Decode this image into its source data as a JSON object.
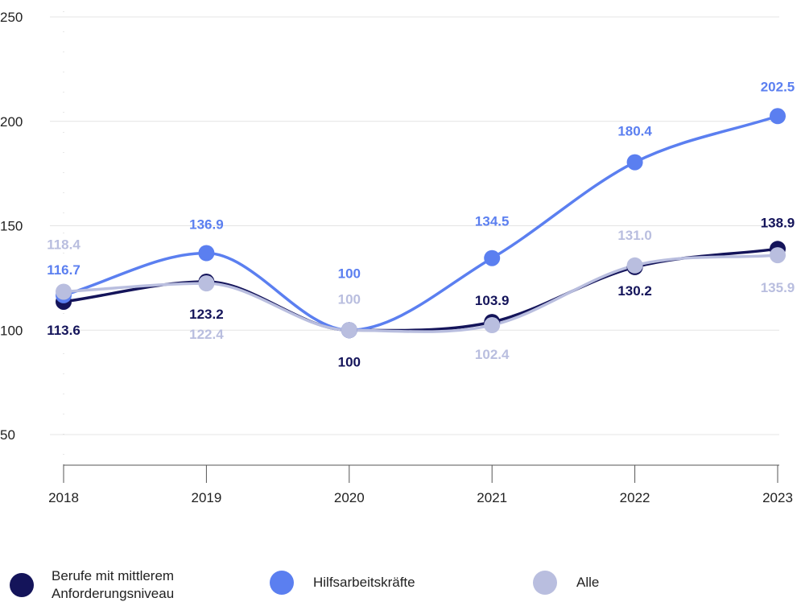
{
  "chart_data": {
    "type": "line",
    "title": "",
    "xlabel": "",
    "ylabel": "",
    "x": [
      "2018",
      "2019",
      "2020",
      "2021",
      "2022",
      "2023"
    ],
    "ylim": [
      30,
      250
    ],
    "yticks": [
      50,
      100,
      150,
      200,
      250
    ],
    "grid": "horizontal",
    "legend_position": "bottom",
    "series": [
      {
        "name": "Berufe mit mittlerem Anforderungsniveau",
        "color": "#14145a",
        "values": [
          113.6,
          123.2,
          100,
          103.9,
          130.2,
          138.9
        ],
        "labels": [
          "113.6",
          "123.2",
          "100",
          "103.9",
          "130.2",
          "138.9"
        ]
      },
      {
        "name": "Hilfsarbeitskräfte",
        "color": "#5b7ff0",
        "values": [
          116.7,
          136.9,
          100,
          134.5,
          180.4,
          202.5
        ],
        "labels": [
          "116.7",
          "136.9",
          "100",
          "134.5",
          "180.4",
          "202.5"
        ]
      },
      {
        "name": "Alle",
        "color": "#b9bedf",
        "values": [
          118.4,
          122.4,
          100,
          102.4,
          131.0,
          135.9
        ],
        "labels": [
          "118.4",
          "122.4",
          "100",
          "102.4",
          "131.0",
          "135.9"
        ]
      }
    ]
  },
  "legend": {
    "items": [
      {
        "line1": "Berufe mit mittlerem",
        "line2": "Anforderungsniveau",
        "color": "#14145a"
      },
      {
        "line1": "Hilfsarbeitskräfte",
        "color": "#5b7ff0"
      },
      {
        "line1": "Alle",
        "color": "#b9bedf"
      }
    ]
  }
}
